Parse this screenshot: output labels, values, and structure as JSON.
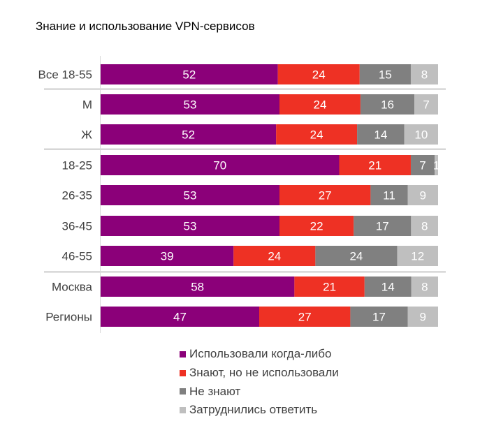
{
  "chart_data": {
    "type": "bar",
    "orientation": "horizontal",
    "stacked": true,
    "normalized": true,
    "title": "Знание и использование VPN-сервисов",
    "xlabel": "",
    "ylabel": "",
    "grid": false,
    "legend_position": "bottom",
    "categories": [
      "Все 18-55",
      "М",
      "Ж",
      "18-25",
      "26-35",
      "36-45",
      "46-55",
      "Москва",
      "Регионы"
    ],
    "group_separators_after": [
      "Все 18-55",
      "Ж",
      "46-55"
    ],
    "series": [
      {
        "name": "Использовали когда-либо",
        "color": "#8B0079",
        "values": [
          52,
          53,
          52,
          70,
          53,
          53,
          39,
          58,
          47
        ]
      },
      {
        "name": "Знают, но не использовали",
        "color": "#EE3124",
        "values": [
          24,
          24,
          24,
          21,
          27,
          22,
          24,
          21,
          27
        ]
      },
      {
        "name": "Не знают",
        "color": "#808080",
        "values": [
          15,
          16,
          14,
          7,
          11,
          17,
          24,
          14,
          17
        ]
      },
      {
        "name": "Затруднились ответить",
        "color": "#BFBFBF",
        "values": [
          8,
          7,
          10,
          1,
          9,
          8,
          12,
          8,
          9
        ]
      }
    ]
  }
}
